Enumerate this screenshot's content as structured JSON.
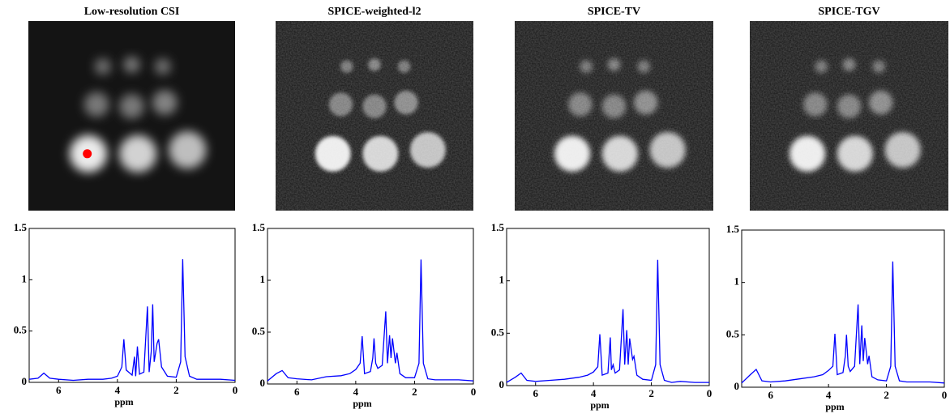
{
  "chart_data": [
    {
      "type": "line",
      "title": "Low-resolution CSI",
      "xlabel": "ppm",
      "xlim": [
        7,
        0
      ],
      "xticks": [
        6,
        4,
        2,
        0
      ],
      "ylim": [
        0,
        1.5
      ],
      "yticks": [
        0,
        0.5,
        1,
        1.5
      ],
      "color": "#0000ff",
      "x": [
        7,
        6.7,
        6.5,
        6.3,
        6,
        5.5,
        5,
        4.5,
        4.2,
        4,
        3.85,
        3.78,
        3.7,
        3.5,
        3.42,
        3.38,
        3.32,
        3.25,
        3.1,
        2.98,
        2.92,
        2.85,
        2.8,
        2.75,
        2.65,
        2.6,
        2.5,
        2.3,
        2,
        1.85,
        1.78,
        1.7,
        1.55,
        1.3,
        1,
        0.5,
        0
      ],
      "values": [
        0.03,
        0.04,
        0.09,
        0.04,
        0.03,
        0.02,
        0.03,
        0.03,
        0.04,
        0.06,
        0.15,
        0.42,
        0.12,
        0.07,
        0.25,
        0.06,
        0.35,
        0.08,
        0.1,
        0.74,
        0.1,
        0.3,
        0.76,
        0.2,
        0.38,
        0.42,
        0.15,
        0.06,
        0.05,
        0.2,
        1.2,
        0.25,
        0.06,
        0.03,
        0.03,
        0.03,
        0.02
      ]
    },
    {
      "type": "line",
      "title": "SPICE-weighted-l2",
      "xlabel": "ppm",
      "xlim": [
        7,
        0
      ],
      "xticks": [
        6,
        4,
        2,
        0
      ],
      "ylim": [
        0,
        1.5
      ],
      "yticks": [
        0,
        0.5,
        1,
        1.5
      ],
      "color": "#0000ff",
      "x": [
        7,
        6.7,
        6.5,
        6.3,
        6,
        5.5,
        5,
        4.5,
        4.2,
        4,
        3.85,
        3.78,
        3.7,
        3.5,
        3.42,
        3.38,
        3.32,
        3.25,
        3.1,
        2.98,
        2.92,
        2.85,
        2.8,
        2.75,
        2.65,
        2.6,
        2.5,
        2.3,
        2,
        1.85,
        1.78,
        1.7,
        1.55,
        1.3,
        1,
        0.5,
        0
      ],
      "values": [
        0.03,
        0.1,
        0.13,
        0.06,
        0.05,
        0.04,
        0.07,
        0.08,
        0.1,
        0.14,
        0.2,
        0.46,
        0.1,
        0.12,
        0.25,
        0.44,
        0.2,
        0.15,
        0.18,
        0.7,
        0.2,
        0.47,
        0.25,
        0.44,
        0.2,
        0.3,
        0.1,
        0.06,
        0.06,
        0.2,
        1.2,
        0.2,
        0.05,
        0.04,
        0.04,
        0.04,
        0.03
      ]
    },
    {
      "type": "line",
      "title": "SPICE-TV",
      "xlabel": "ppm",
      "xlim": [
        7,
        0
      ],
      "xticks": [
        6,
        4,
        2,
        0
      ],
      "ylim": [
        0,
        1.5
      ],
      "yticks": [
        0,
        0.5,
        1,
        1.5
      ],
      "color": "#0000ff",
      "x": [
        7,
        6.7,
        6.5,
        6.3,
        6,
        5.5,
        5,
        4.5,
        4.2,
        4,
        3.85,
        3.78,
        3.7,
        3.5,
        3.42,
        3.38,
        3.32,
        3.25,
        3.1,
        2.98,
        2.92,
        2.85,
        2.8,
        2.75,
        2.65,
        2.6,
        2.5,
        2.3,
        2,
        1.85,
        1.78,
        1.7,
        1.55,
        1.3,
        1,
        0.5,
        0
      ],
      "values": [
        0.03,
        0.08,
        0.12,
        0.05,
        0.04,
        0.05,
        0.06,
        0.08,
        0.1,
        0.13,
        0.18,
        0.49,
        0.1,
        0.12,
        0.46,
        0.15,
        0.2,
        0.12,
        0.15,
        0.73,
        0.2,
        0.53,
        0.2,
        0.45,
        0.25,
        0.28,
        0.1,
        0.06,
        0.05,
        0.2,
        1.2,
        0.2,
        0.05,
        0.03,
        0.04,
        0.03,
        0.03
      ]
    },
    {
      "type": "line",
      "title": "SPICE-TGV",
      "xlabel": "ppm",
      "xlim": [
        7,
        0
      ],
      "xticks": [
        6,
        4,
        2,
        0
      ],
      "ylim": [
        0,
        1.5
      ],
      "yticks": [
        0,
        0.5,
        1,
        1.5
      ],
      "color": "#0000ff",
      "x": [
        7,
        6.7,
        6.5,
        6.3,
        6,
        5.5,
        5,
        4.5,
        4.2,
        4,
        3.85,
        3.78,
        3.7,
        3.5,
        3.42,
        3.38,
        3.32,
        3.25,
        3.1,
        2.98,
        2.92,
        2.85,
        2.8,
        2.75,
        2.65,
        2.6,
        2.5,
        2.3,
        2,
        1.85,
        1.78,
        1.7,
        1.55,
        1.3,
        1,
        0.5,
        0
      ],
      "values": [
        0.04,
        0.12,
        0.17,
        0.06,
        0.05,
        0.06,
        0.08,
        0.1,
        0.12,
        0.16,
        0.2,
        0.51,
        0.12,
        0.14,
        0.3,
        0.5,
        0.2,
        0.15,
        0.2,
        0.79,
        0.22,
        0.59,
        0.25,
        0.47,
        0.22,
        0.3,
        0.1,
        0.07,
        0.06,
        0.2,
        1.2,
        0.2,
        0.06,
        0.05,
        0.05,
        0.05,
        0.04
      ]
    }
  ]
}
